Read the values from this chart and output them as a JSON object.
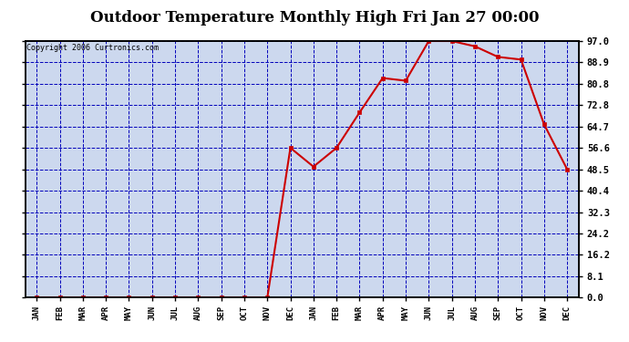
{
  "title": "Outdoor Temperature Monthly High Fri Jan 27 00:00",
  "copyright": "Copyright 2006 Curtronics.com",
  "x_labels": [
    "JAN",
    "FEB",
    "MAR",
    "APR",
    "MAY",
    "JUN",
    "JUL",
    "AUG",
    "SEP",
    "OCT",
    "NOV",
    "DEC",
    "JAN",
    "FEB",
    "MAR",
    "APR",
    "MAY",
    "JUN",
    "JUL",
    "AUG",
    "SEP",
    "OCT",
    "NOV",
    "DEC"
  ],
  "y_values": [
    0.0,
    0.0,
    0.0,
    0.0,
    0.0,
    0.0,
    0.0,
    0.0,
    0.0,
    0.0,
    0.0,
    56.6,
    49.5,
    56.6,
    70.0,
    83.0,
    82.0,
    97.0,
    97.0,
    95.0,
    91.0,
    90.0,
    65.5,
    48.5
  ],
  "y_ticks": [
    0.0,
    8.1,
    16.2,
    24.2,
    32.3,
    40.4,
    48.5,
    56.6,
    64.7,
    72.8,
    80.8,
    88.9,
    97.0
  ],
  "line_color": "#cc0000",
  "marker_color": "#cc0000",
  "background_color": "#ccd8ee",
  "grid_color": "#0000bb",
  "title_fontsize": 12,
  "ylim_min": 0.0,
  "ylim_max": 97.0
}
